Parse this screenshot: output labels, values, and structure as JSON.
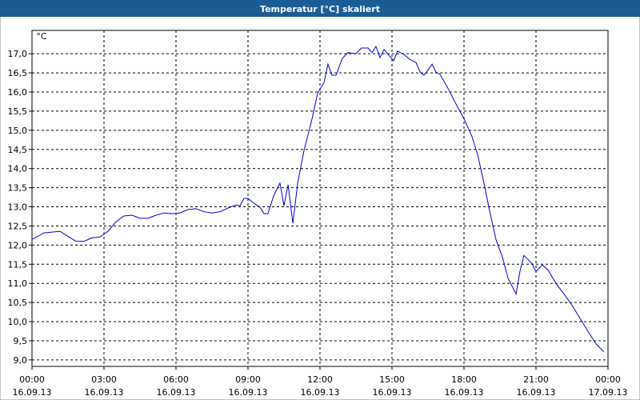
{
  "chart_data": {
    "type": "line",
    "title": "Temperatur [°C] skaliert",
    "y_unit": "°C",
    "xlim": [
      0,
      24
    ],
    "ylim": [
      8.83,
      17.61
    ],
    "grid": true,
    "xticks": [
      {
        "value": 0,
        "label": "00:00\n16.09.13"
      },
      {
        "value": 3,
        "label": "03:00\n16.09.13"
      },
      {
        "value": 6,
        "label": "06:00\n16.09.13"
      },
      {
        "value": 9,
        "label": "09:00\n16.09.13"
      },
      {
        "value": 12,
        "label": "12:00\n16.09.13"
      },
      {
        "value": 15,
        "label": "15:00\n16.09.13"
      },
      {
        "value": 18,
        "label": "18:00\n16.09.13"
      },
      {
        "value": 21,
        "label": "21:00\n16.09.13"
      },
      {
        "value": 24,
        "label": "00:00\n17.09.13"
      }
    ],
    "yticks": [
      {
        "value": 9,
        "label": "9,0"
      },
      {
        "value": 9.5,
        "label": "9,5"
      },
      {
        "value": 10,
        "label": "10,0"
      },
      {
        "value": 10.5,
        "label": "10,5"
      },
      {
        "value": 11,
        "label": "11,0"
      },
      {
        "value": 11.5,
        "label": "11,5"
      },
      {
        "value": 12,
        "label": "12,0"
      },
      {
        "value": 12.5,
        "label": "12,5"
      },
      {
        "value": 13,
        "label": "13,0"
      },
      {
        "value": 13.5,
        "label": "13,5"
      },
      {
        "value": 14,
        "label": "14,0"
      },
      {
        "value": 14.5,
        "label": "14,5"
      },
      {
        "value": 15,
        "label": "15,0"
      },
      {
        "value": 15.5,
        "label": "15,5"
      },
      {
        "value": 16,
        "label": "16,0"
      },
      {
        "value": 16.5,
        "label": "16,5"
      },
      {
        "value": 17,
        "label": "17,0"
      }
    ],
    "series": [
      {
        "color": "#0000cc",
        "x": [
          0,
          0.5,
          1.17,
          1.5,
          1.83,
          2.17,
          2.5,
          2.83,
          3.17,
          3.5,
          3.83,
          4.17,
          4.5,
          4.83,
          5.17,
          5.5,
          5.83,
          6.17,
          6.5,
          6.83,
          7.17,
          7.5,
          7.83,
          8.17,
          8.5,
          8.67,
          8.83,
          9.0,
          9.27,
          9.5,
          9.67,
          9.83,
          10.07,
          10.33,
          10.5,
          10.67,
          10.87,
          11.07,
          11.33,
          11.67,
          11.9,
          12.17,
          12.33,
          12.5,
          12.67,
          12.93,
          13.17,
          13.5,
          13.73,
          14.0,
          14.17,
          14.33,
          14.5,
          14.67,
          14.9,
          15.07,
          15.23,
          15.5,
          15.73,
          16.0,
          16.17,
          16.33,
          16.5,
          16.67,
          16.83,
          17.0,
          17.33,
          17.67,
          18.0,
          18.33,
          18.57,
          18.83,
          19.07,
          19.33,
          19.6,
          19.83,
          20.17,
          20.33,
          20.5,
          20.83,
          21.0,
          21.27,
          21.5,
          21.83,
          22.17,
          22.5,
          22.83,
          23.17,
          23.5,
          23.83
        ],
        "values": [
          12.15,
          12.32,
          12.36,
          12.23,
          12.1,
          12.1,
          12.19,
          12.21,
          12.36,
          12.61,
          12.76,
          12.78,
          12.7,
          12.7,
          12.78,
          12.84,
          12.82,
          12.84,
          12.93,
          12.95,
          12.87,
          12.84,
          12.87,
          12.97,
          13.05,
          13.03,
          13.22,
          13.22,
          13.08,
          12.99,
          12.82,
          12.82,
          13.29,
          13.62,
          13.03,
          13.58,
          12.57,
          13.62,
          14.46,
          15.3,
          15.97,
          16.25,
          16.73,
          16.44,
          16.44,
          16.88,
          17.03,
          17.0,
          17.15,
          17.15,
          17.03,
          17.19,
          16.9,
          17.11,
          16.94,
          16.82,
          17.07,
          16.98,
          16.86,
          16.77,
          16.52,
          16.44,
          16.57,
          16.73,
          16.52,
          16.46,
          16.1,
          15.68,
          15.3,
          14.84,
          14.36,
          13.62,
          12.89,
          12.15,
          11.69,
          11.14,
          10.72,
          11.31,
          11.73,
          11.52,
          11.31,
          11.48,
          11.35,
          11.0,
          10.72,
          10.43,
          10.09,
          9.74,
          9.42,
          9.21
        ]
      }
    ]
  }
}
